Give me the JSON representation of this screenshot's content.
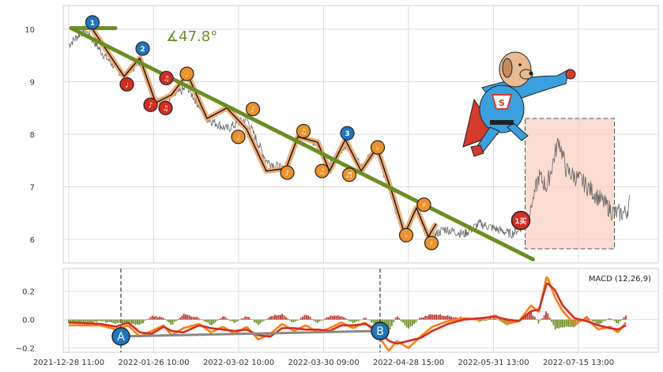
{
  "chart_data": [
    {
      "type": "line",
      "panel": "price",
      "ylim": [
        5.55,
        10.45
      ],
      "y_ticks": [
        6,
        7,
        8,
        9,
        10
      ],
      "grid": true,
      "x_tick_labels": [
        "2021-12-28 11:00",
        "2022-01-26 10:00",
        "2022-03-02 10:00",
        "2022-03-30 09:00",
        "2022-04-28 15:00",
        "2022-05-31 13:00",
        "2022-07-15 13:00"
      ],
      "price_anchors": [
        [
          0,
          9.7
        ],
        [
          4,
          10.0
        ],
        [
          9,
          9.5
        ],
        [
          14,
          9.1
        ],
        [
          18,
          9.4
        ],
        [
          22,
          8.6
        ],
        [
          26,
          8.7
        ],
        [
          30,
          8.9
        ],
        [
          35,
          8.3
        ],
        [
          40,
          8.1
        ],
        [
          45,
          8.3
        ],
        [
          50,
          7.5
        ],
        [
          55,
          7.3
        ],
        [
          58,
          8.0
        ],
        [
          63,
          7.8
        ],
        [
          66,
          7.4
        ],
        [
          70,
          7.8
        ],
        [
          74,
          7.4
        ],
        [
          78,
          7.7
        ],
        [
          82,
          6.7
        ],
        [
          85,
          6.1
        ],
        [
          88,
          6.6
        ],
        [
          91,
          6.0
        ],
        [
          95,
          6.2
        ],
        [
          100,
          6.1
        ],
        [
          104,
          6.3
        ],
        [
          108,
          6.2
        ],
        [
          112,
          6.1
        ],
        [
          116,
          6.3
        ],
        [
          119,
          7.2
        ],
        [
          121,
          7.0
        ],
        [
          124,
          7.9
        ],
        [
          126,
          7.3
        ],
        [
          130,
          7.1
        ],
        [
          134,
          6.8
        ],
        [
          138,
          6.5
        ],
        [
          141,
          6.5
        ],
        [
          142,
          6.7
        ]
      ],
      "trend_line": [
        [
          0.6,
          10.02
        ],
        [
          117.5,
          5.62
        ]
      ],
      "top_line": [
        [
          0.6,
          10.02
        ],
        [
          11.8,
          10.02
        ]
      ],
      "angle_label": "∡47.8°",
      "wave_path": [
        [
          6,
          10.0
        ],
        [
          14,
          9.1
        ],
        [
          18,
          9.45
        ],
        [
          22,
          8.6
        ],
        [
          26,
          8.75
        ],
        [
          30,
          9.15
        ],
        [
          35,
          8.3
        ],
        [
          40,
          8.5
        ],
        [
          45,
          8.1
        ],
        [
          50,
          7.3
        ],
        [
          55,
          7.35
        ],
        [
          58,
          7.95
        ],
        [
          63,
          7.85
        ],
        [
          66,
          7.3
        ],
        [
          70,
          7.9
        ],
        [
          74,
          7.3
        ],
        [
          78,
          7.75
        ],
        [
          82,
          6.85
        ],
        [
          85,
          6.1
        ],
        [
          88,
          6.6
        ],
        [
          91,
          6.05
        ],
        [
          93,
          6.3
        ]
      ],
      "markers": [
        {
          "x": 6,
          "y": 10.13,
          "label": "1",
          "color": "#1f77c4"
        },
        {
          "x": 18.7,
          "y": 9.63,
          "label": "2",
          "color": "#1f77c4"
        },
        {
          "x": 70.5,
          "y": 8.02,
          "label": "3",
          "color": "#1f77c4"
        },
        {
          "x": 14.7,
          "y": 8.95,
          "label": "♩",
          "color": "#d62d20"
        },
        {
          "x": 24.7,
          "y": 9.07,
          "label": "♫",
          "color": "#d62d20"
        },
        {
          "x": 20.7,
          "y": 8.56,
          "label": "♪",
          "color": "#d62d20"
        },
        {
          "x": 24.5,
          "y": 8.5,
          "label": "♫",
          "color": "#d62d20"
        },
        {
          "x": 29.9,
          "y": 9.15,
          "label": "♩",
          "color": "#f0912a"
        },
        {
          "x": 46.6,
          "y": 8.48,
          "label": "♪",
          "color": "#f0912a"
        },
        {
          "x": 42.9,
          "y": 7.95,
          "label": "♩",
          "color": "#f0912a"
        },
        {
          "x": 59.4,
          "y": 8.06,
          "label": "♫",
          "color": "#f0912a"
        },
        {
          "x": 55.3,
          "y": 7.27,
          "label": "♪",
          "color": "#f0912a"
        },
        {
          "x": 64.1,
          "y": 7.3,
          "label": "♫",
          "color": "#f0912a"
        },
        {
          "x": 71,
          "y": 7.23,
          "label": "♬",
          "color": "#f0912a"
        },
        {
          "x": 78.2,
          "y": 7.75,
          "label": "♭",
          "color": "#f0912a"
        },
        {
          "x": 85.4,
          "y": 6.08,
          "label": "♭",
          "color": "#f0912a"
        },
        {
          "x": 89.9,
          "y": 6.66,
          "label": "♯",
          "color": "#f0912a"
        },
        {
          "x": 91.8,
          "y": 5.93,
          "label": "♯",
          "color": "#f0912a"
        }
      ],
      "buy_marker": {
        "x": 114.4,
        "y": 6.36,
        "label": "1买",
        "color": "#d62d20"
      },
      "highlight_box": {
        "x0": 115.5,
        "x1": 138.1,
        "y0": 5.82,
        "y1": 8.3
      }
    },
    {
      "type": "line",
      "panel": "macd",
      "title": "MACD (12,26,9)",
      "ylim": [
        -0.23,
        0.36
      ],
      "y_ticks": [
        -0.2,
        0.0,
        0.2
      ],
      "y_tick_labels": [
        "−0.2",
        "0.0",
        "0.2"
      ],
      "grid": true,
      "series": [
        {
          "role": "dif",
          "color": "#ff7f0e",
          "anchors": [
            [
              0,
              -0.04
            ],
            [
              8,
              -0.04
            ],
            [
              12,
              -0.07
            ],
            [
              15,
              -0.04
            ],
            [
              18,
              -0.12
            ],
            [
              21,
              -0.08
            ],
            [
              24,
              -0.04
            ],
            [
              26,
              -0.11
            ],
            [
              29,
              -0.06
            ],
            [
              33,
              -0.03
            ],
            [
              36,
              -0.09
            ],
            [
              39,
              -0.05
            ],
            [
              42,
              -0.1
            ],
            [
              45,
              -0.05
            ],
            [
              48,
              -0.14
            ],
            [
              51,
              -0.1
            ],
            [
              54,
              -0.03
            ],
            [
              57,
              -0.08
            ],
            [
              60,
              -0.04
            ],
            [
              63,
              -0.09
            ],
            [
              66,
              -0.06
            ],
            [
              69,
              -0.02
            ],
            [
              72,
              -0.06
            ],
            [
              75,
              -0.02
            ],
            [
              78,
              -0.1
            ],
            [
              81,
              -0.22
            ],
            [
              83,
              -0.15
            ],
            [
              86,
              -0.2
            ],
            [
              89,
              -0.12
            ],
            [
              92,
              -0.05
            ],
            [
              96,
              -0.01
            ],
            [
              100,
              0.01
            ],
            [
              104,
              0.0
            ],
            [
              108,
              0.03
            ],
            [
              111,
              -0.03
            ],
            [
              114,
              -0.01
            ],
            [
              117,
              0.1
            ],
            [
              119,
              0.05
            ],
            [
              121,
              0.31
            ],
            [
              123,
              0.16
            ],
            [
              125,
              0.06
            ],
            [
              128,
              -0.03
            ],
            [
              131,
              0.01
            ],
            [
              134,
              -0.07
            ],
            [
              137,
              -0.05
            ],
            [
              139,
              -0.09
            ],
            [
              141,
              -0.02
            ]
          ]
        },
        {
          "role": "dea",
          "color": "#d62d20",
          "anchors": [
            [
              0,
              -0.02
            ],
            [
              8,
              -0.03
            ],
            [
              12,
              -0.05
            ],
            [
              15,
              -0.02
            ],
            [
              18,
              -0.09
            ],
            [
              21,
              -0.1
            ],
            [
              24,
              -0.05
            ],
            [
              26,
              -0.08
            ],
            [
              29,
              -0.09
            ],
            [
              33,
              -0.04
            ],
            [
              36,
              -0.06
            ],
            [
              39,
              -0.07
            ],
            [
              42,
              -0.08
            ],
            [
              45,
              -0.07
            ],
            [
              48,
              -0.11
            ],
            [
              51,
              -0.12
            ],
            [
              54,
              -0.06
            ],
            [
              57,
              -0.06
            ],
            [
              60,
              -0.07
            ],
            [
              63,
              -0.07
            ],
            [
              66,
              -0.08
            ],
            [
              69,
              -0.04
            ],
            [
              72,
              -0.04
            ],
            [
              75,
              -0.03
            ],
            [
              78,
              -0.07
            ],
            [
              81,
              -0.15
            ],
            [
              83,
              -0.17
            ],
            [
              86,
              -0.15
            ],
            [
              89,
              -0.13
            ],
            [
              92,
              -0.08
            ],
            [
              96,
              -0.03
            ],
            [
              100,
              0.0
            ],
            [
              104,
              0.01
            ],
            [
              108,
              0.02
            ],
            [
              111,
              0.0
            ],
            [
              114,
              -0.01
            ],
            [
              117,
              0.06
            ],
            [
              119,
              0.07
            ],
            [
              121,
              0.26
            ],
            [
              123,
              0.21
            ],
            [
              125,
              0.1
            ],
            [
              128,
              0.01
            ],
            [
              131,
              -0.01
            ],
            [
              134,
              -0.04
            ],
            [
              137,
              -0.06
            ],
            [
              139,
              -0.07
            ],
            [
              141,
              -0.04
            ]
          ]
        }
      ],
      "divergence_line": [
        [
          13.2,
          -0.118
        ],
        [
          78.8,
          -0.08
        ]
      ],
      "point_a": {
        "x": 13.2,
        "y": -0.118,
        "label": "A"
      },
      "point_b": {
        "x": 78.8,
        "y": -0.08,
        "label": "B"
      },
      "vlines_x": [
        13.2,
        78.8
      ]
    }
  ]
}
